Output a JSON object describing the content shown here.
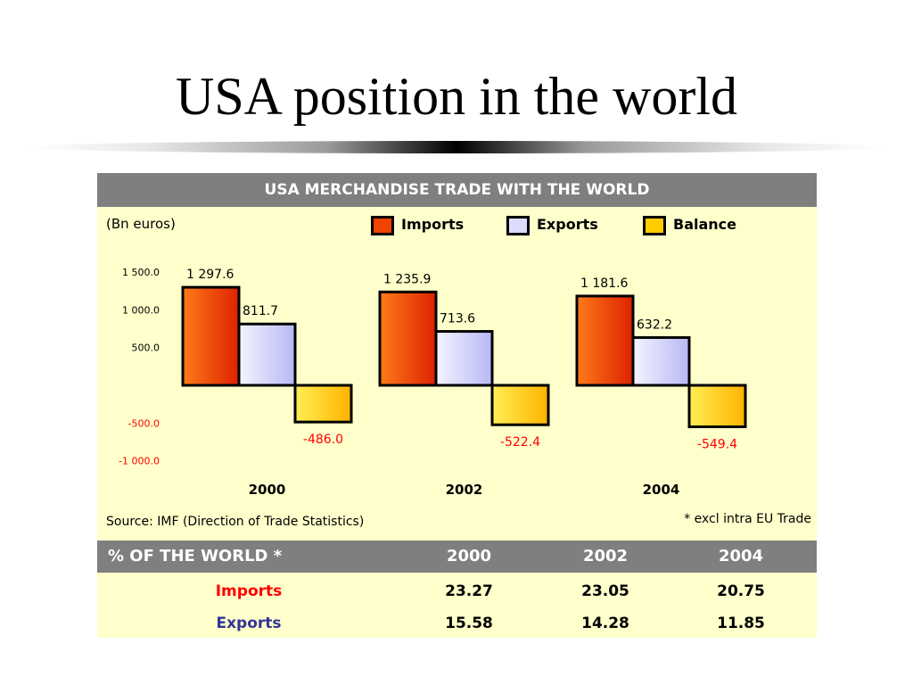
{
  "slide": {
    "title": "USA position in the world"
  },
  "panel": {
    "header": "USA MERCHANDISE TRADE WITH THE WORLD",
    "unit_label": "(Bn euros)",
    "source": "Source: IMF (Direction of Trade Statistics)",
    "footnote": "* excl intra EU Trade"
  },
  "legend": [
    {
      "label": "Imports",
      "color": "#ee4400"
    },
    {
      "label": "Exports",
      "color": "#dcdcff"
    },
    {
      "label": "Balance",
      "color": "#ffcc00"
    }
  ],
  "chart_data": {
    "type": "bar",
    "title": "USA MERCHANDISE TRADE WITH THE WORLD",
    "ylabel": "(Bn euros)",
    "categories": [
      "2000",
      "2002",
      "2004"
    ],
    "series": [
      {
        "name": "Imports",
        "values": [
          1297.6,
          1235.9,
          1181.6
        ],
        "labels": [
          "1 297.6",
          "1 235.9",
          "1 181.6"
        ],
        "color": "#ee4400"
      },
      {
        "name": "Exports",
        "values": [
          811.7,
          713.6,
          632.2
        ],
        "labels": [
          "811.7",
          "713.6",
          "632.2"
        ],
        "color": "#dcdcff"
      },
      {
        "name": "Balance",
        "values": [
          -486.0,
          -522.4,
          -549.4
        ],
        "labels": [
          "-486.0",
          "-522.4",
          "-549.4"
        ],
        "color": "#ffcc00"
      }
    ],
    "yticks": [
      1500,
      1000,
      500,
      -500,
      -1000
    ],
    "ytick_labels": [
      "1 500.0",
      "1 000.0",
      "500.0",
      "-500.0",
      "-1 000.0"
    ],
    "ylim": [
      -1000,
      1500
    ],
    "negative_label_color": "#ff0000",
    "grid": false,
    "legend_position": "top"
  },
  "table": {
    "header_label": "% OF THE WORLD *",
    "years": [
      "2000",
      "2002",
      "2004"
    ],
    "rows": [
      {
        "label": "Imports",
        "color": "#ff0000",
        "values": [
          "23.27",
          "23.05",
          "20.75"
        ]
      },
      {
        "label": "Exports",
        "color": "#333399",
        "values": [
          "15.58",
          "14.28",
          "11.85"
        ]
      }
    ]
  }
}
